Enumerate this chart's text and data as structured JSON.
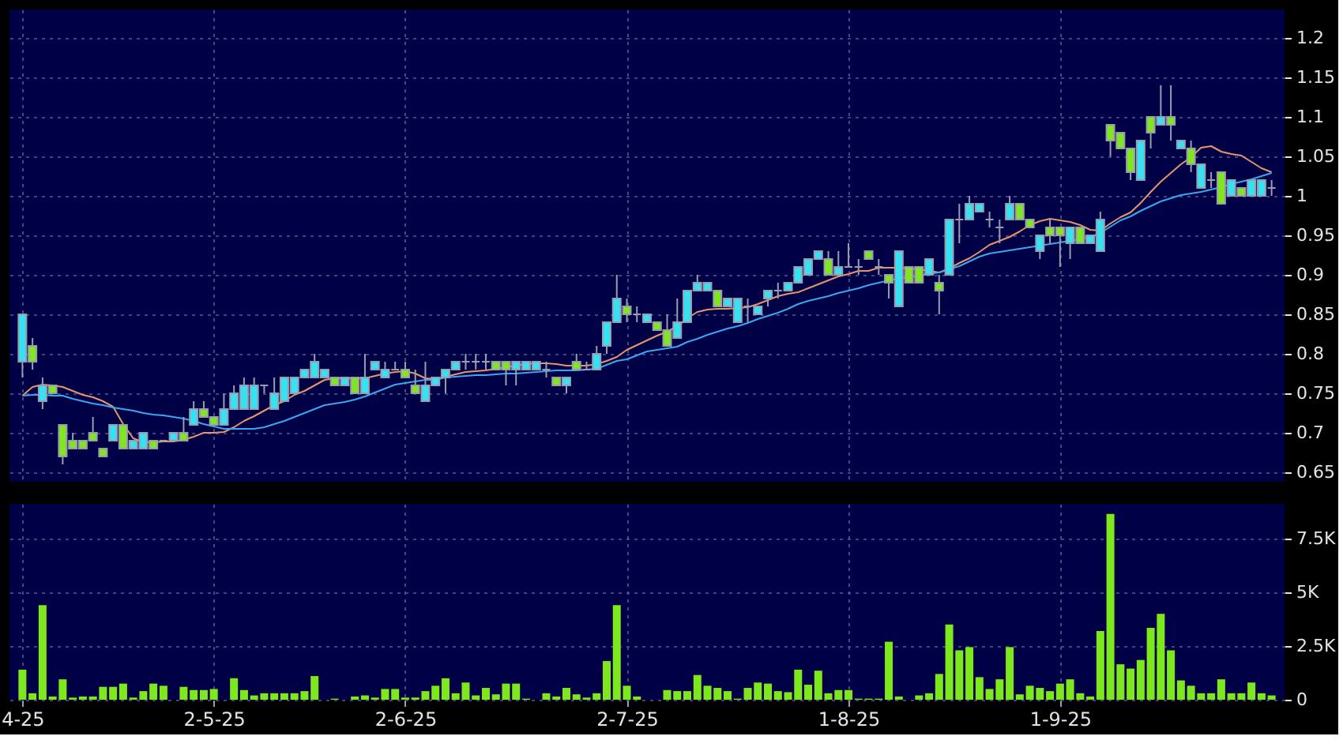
{
  "chart_data": [
    {
      "type": "candlestick",
      "categories": [
        null,
        null,
        null,
        null,
        null,
        null,
        null,
        null,
        null,
        null,
        null,
        null,
        null,
        null,
        null,
        null,
        null,
        null,
        null,
        null,
        null,
        null,
        null,
        null,
        null,
        null,
        null,
        null,
        null,
        null,
        null,
        null,
        null,
        null,
        null,
        null,
        null,
        null,
        null,
        null,
        null,
        null,
        null,
        null,
        null,
        null,
        null,
        null,
        null,
        null,
        null,
        null,
        null,
        null,
        null,
        null,
        null,
        null,
        null,
        null,
        null,
        null,
        null,
        null,
        null,
        null,
        null,
        null,
        null,
        null,
        null,
        null,
        null,
        null,
        null,
        null,
        null,
        null,
        null,
        null,
        null,
        null,
        null,
        null,
        null,
        null,
        null,
        null,
        null,
        null,
        null,
        null,
        null,
        null,
        null,
        null,
        null,
        null,
        null,
        null,
        null,
        null,
        null,
        null,
        null,
        null,
        null,
        null,
        null,
        null,
        null,
        null,
        null,
        null,
        null,
        null,
        null,
        null,
        null,
        null,
        null,
        null,
        null,
        null,
        null
      ],
      "ohlc": [
        [
          0.79,
          0.85,
          0.77,
          0.85
        ],
        [
          0.81,
          0.82,
          0.78,
          0.79
        ],
        [
          0.74,
          0.77,
          0.73,
          0.76
        ],
        [
          0.76,
          0.76,
          0.75,
          0.75
        ],
        [
          0.71,
          0.71,
          0.66,
          0.67
        ],
        [
          0.69,
          0.7,
          0.68,
          0.68
        ],
        [
          0.69,
          0.69,
          0.68,
          0.68
        ],
        [
          0.7,
          0.72,
          0.69,
          0.69
        ],
        [
          0.68,
          0.68,
          0.67,
          0.67
        ],
        [
          0.69,
          0.71,
          0.69,
          0.71
        ],
        [
          0.71,
          0.71,
          0.68,
          0.68
        ],
        [
          0.68,
          0.69,
          0.68,
          0.69
        ],
        [
          0.68,
          0.7,
          0.68,
          0.7
        ],
        [
          0.69,
          0.69,
          0.68,
          0.68
        ],
        [
          0.69,
          0.69,
          0.69,
          0.69
        ],
        [
          0.69,
          0.7,
          0.69,
          0.7
        ],
        [
          0.7,
          0.72,
          0.69,
          0.69
        ],
        [
          0.71,
          0.74,
          0.71,
          0.73
        ],
        [
          0.73,
          0.74,
          0.72,
          0.72
        ],
        [
          0.72,
          0.72,
          0.71,
          0.71
        ],
        [
          0.71,
          0.75,
          0.71,
          0.73
        ],
        [
          0.73,
          0.76,
          0.73,
          0.75
        ],
        [
          0.73,
          0.77,
          0.73,
          0.76
        ],
        [
          0.73,
          0.77,
          0.73,
          0.76
        ],
        [
          0.76,
          0.76,
          0.75,
          0.76
        ],
        [
          0.73,
          0.77,
          0.73,
          0.75
        ],
        [
          0.74,
          0.77,
          0.74,
          0.77
        ],
        [
          0.75,
          0.77,
          0.75,
          0.77
        ],
        [
          0.77,
          0.78,
          0.77,
          0.78
        ],
        [
          0.77,
          0.8,
          0.77,
          0.79
        ],
        [
          0.77,
          0.78,
          0.77,
          0.78
        ],
        [
          0.77,
          0.77,
          0.76,
          0.76
        ],
        [
          0.76,
          0.77,
          0.76,
          0.77
        ],
        [
          0.77,
          0.77,
          0.75,
          0.75
        ],
        [
          0.75,
          0.8,
          0.75,
          0.77
        ],
        [
          0.78,
          0.79,
          0.78,
          0.79
        ],
        [
          0.77,
          0.79,
          0.77,
          0.78
        ],
        [
          0.78,
          0.79,
          0.78,
          0.78
        ],
        [
          0.78,
          0.79,
          0.77,
          0.77
        ],
        [
          0.76,
          0.78,
          0.75,
          0.75
        ],
        [
          0.74,
          0.79,
          0.74,
          0.76
        ],
        [
          0.76,
          0.77,
          0.76,
          0.77
        ],
        [
          0.77,
          0.78,
          0.75,
          0.78
        ],
        [
          0.78,
          0.79,
          0.78,
          0.79
        ],
        [
          0.79,
          0.8,
          0.78,
          0.79
        ],
        [
          0.79,
          0.8,
          0.78,
          0.79
        ],
        [
          0.79,
          0.8,
          0.78,
          0.79
        ],
        [
          0.79,
          0.79,
          0.78,
          0.78
        ],
        [
          0.79,
          0.79,
          0.76,
          0.78
        ],
        [
          0.78,
          0.79,
          0.76,
          0.79
        ],
        [
          0.78,
          0.79,
          0.78,
          0.79
        ],
        [
          0.78,
          0.79,
          0.78,
          0.79
        ],
        [
          0.78,
          0.79,
          0.77,
          0.78
        ],
        [
          0.77,
          0.77,
          0.76,
          0.76
        ],
        [
          0.76,
          0.77,
          0.75,
          0.77
        ],
        [
          0.79,
          0.8,
          0.78,
          0.78
        ],
        [
          0.78,
          0.79,
          0.78,
          0.78
        ],
        [
          0.78,
          0.81,
          0.78,
          0.8
        ],
        [
          0.81,
          0.84,
          0.8,
          0.84
        ],
        [
          0.84,
          0.9,
          0.84,
          0.87
        ],
        [
          0.86,
          0.87,
          0.84,
          0.85
        ],
        [
          0.85,
          0.86,
          0.84,
          0.85
        ],
        [
          0.84,
          0.85,
          0.84,
          0.85
        ],
        [
          0.84,
          0.84,
          0.83,
          0.83
        ],
        [
          0.83,
          0.85,
          0.81,
          0.81
        ],
        [
          0.82,
          0.87,
          0.82,
          0.84
        ],
        [
          0.84,
          0.88,
          0.84,
          0.88
        ],
        [
          0.88,
          0.9,
          0.88,
          0.89
        ],
        [
          0.88,
          0.89,
          0.88,
          0.89
        ],
        [
          0.88,
          0.88,
          0.86,
          0.86
        ],
        [
          0.86,
          0.87,
          0.86,
          0.87
        ],
        [
          0.84,
          0.87,
          0.84,
          0.87
        ],
        [
          0.86,
          0.87,
          0.84,
          0.86
        ],
        [
          0.85,
          0.86,
          0.85,
          0.86
        ],
        [
          0.87,
          0.88,
          0.86,
          0.88
        ],
        [
          0.88,
          0.89,
          0.87,
          0.88
        ],
        [
          0.88,
          0.89,
          0.88,
          0.89
        ],
        [
          0.89,
          0.91,
          0.89,
          0.91
        ],
        [
          0.9,
          0.92,
          0.9,
          0.92
        ],
        [
          0.92,
          0.93,
          0.92,
          0.93
        ],
        [
          0.92,
          0.93,
          0.9,
          0.9
        ],
        [
          0.9,
          0.93,
          0.9,
          0.91
        ],
        [
          0.91,
          0.94,
          0.91,
          0.91
        ],
        [
          0.91,
          0.92,
          0.9,
          0.91
        ],
        [
          0.93,
          0.93,
          0.92,
          0.92
        ],
        [
          0.91,
          0.92,
          0.9,
          0.91
        ],
        [
          0.9,
          0.9,
          0.87,
          0.89
        ],
        [
          0.86,
          0.93,
          0.86,
          0.93
        ],
        [
          0.91,
          0.91,
          0.89,
          0.89
        ],
        [
          0.91,
          0.91,
          0.89,
          0.89
        ],
        [
          0.9,
          0.92,
          0.9,
          0.92
        ],
        [
          0.89,
          0.9,
          0.85,
          0.88
        ],
        [
          0.9,
          0.97,
          0.9,
          0.97
        ],
        [
          0.97,
          0.99,
          0.94,
          0.97
        ],
        [
          0.97,
          1,
          0.97,
          0.99
        ],
        [
          0.98,
          0.99,
          0.98,
          0.99
        ],
        [
          0.97,
          0.98,
          0.96,
          0.97
        ],
        [
          0.96,
          0.97,
          0.94,
          0.96
        ],
        [
          0.97,
          1,
          0.97,
          0.99
        ],
        [
          0.99,
          0.99,
          0.97,
          0.97
        ],
        [
          0.97,
          0.97,
          0.96,
          0.96
        ],
        [
          0.93,
          0.95,
          0.92,
          0.95
        ],
        [
          0.96,
          0.97,
          0.94,
          0.95
        ],
        [
          0.96,
          0.96,
          0.91,
          0.95
        ],
        [
          0.94,
          0.96,
          0.92,
          0.96
        ],
        [
          0.96,
          0.96,
          0.94,
          0.94
        ],
        [
          0.94,
          0.95,
          0.94,
          0.95
        ],
        [
          0.93,
          0.98,
          0.93,
          0.97
        ],
        [
          1.09,
          1.09,
          1.05,
          1.07
        ],
        [
          1.08,
          1.08,
          1.06,
          1.06
        ],
        [
          1.06,
          1.06,
          1.02,
          1.03
        ],
        [
          1.02,
          1.07,
          1.02,
          1.07
        ],
        [
          1.1,
          1.1,
          1.06,
          1.08
        ],
        [
          1.09,
          1.14,
          1.09,
          1.1
        ],
        [
          1.1,
          1.14,
          1.07,
          1.09
        ],
        [
          1.06,
          1.07,
          1.06,
          1.07
        ],
        [
          1.06,
          1.07,
          1.03,
          1.04
        ],
        [
          1.01,
          1.04,
          1.01,
          1.04
        ],
        [
          1.02,
          1.03,
          1.01,
          1.02
        ],
        [
          1.03,
          1.03,
          0.99,
          0.99
        ],
        [
          1,
          1.02,
          1,
          1.02
        ],
        [
          1.01,
          1.01,
          1,
          1
        ],
        [
          1,
          1.02,
          1,
          1.02
        ],
        [
          1,
          1.02,
          1,
          1.02
        ],
        [
          1.01,
          1.02,
          1,
          1.01
        ]
      ],
      "colors": [
        "#36e2f2",
        "#80e620",
        "#36e2f2",
        "#80e620",
        "#80e620",
        "#80e620",
        "#80e620",
        "#80e620",
        "#80e620",
        "#36e2f2",
        "#80e620",
        "#36e2f2",
        "#36e2f2",
        "#80e620",
        "#a0a0b0",
        "#36e2f2",
        "#80e620",
        "#36e2f2",
        "#80e620",
        "#80e620",
        "#36e2f2",
        "#36e2f2",
        "#36e2f2",
        "#36e2f2",
        "#a0a0b0",
        "#36e2f2",
        "#36e2f2",
        "#36e2f2",
        "#36e2f2",
        "#36e2f2",
        "#36e2f2",
        "#80e620",
        "#36e2f2",
        "#80e620",
        "#36e2f2",
        "#36e2f2",
        "#36e2f2",
        "#a0a0b0",
        "#80e620",
        "#80e620",
        "#36e2f2",
        "#36e2f2",
        "#36e2f2",
        "#36e2f2",
        "#a0a0b0",
        "#a0a0b0",
        "#a0a0b0",
        "#80e620",
        "#80e620",
        "#36e2f2",
        "#36e2f2",
        "#36e2f2",
        "#a0a0b0",
        "#80e620",
        "#36e2f2",
        "#80e620",
        "#a0a0b0",
        "#36e2f2",
        "#36e2f2",
        "#36e2f2",
        "#80e620",
        "#a0a0b0",
        "#36e2f2",
        "#80e620",
        "#80e620",
        "#36e2f2",
        "#36e2f2",
        "#36e2f2",
        "#36e2f2",
        "#80e620",
        "#36e2f2",
        "#36e2f2",
        "#a0a0b0",
        "#36e2f2",
        "#36e2f2",
        "#a0a0b0",
        "#36e2f2",
        "#36e2f2",
        "#36e2f2",
        "#36e2f2",
        "#80e620",
        "#36e2f2",
        "#a0a0b0",
        "#a0a0b0",
        "#80e620",
        "#a0a0b0",
        "#80e620",
        "#36e2f2",
        "#80e620",
        "#80e620",
        "#36e2f2",
        "#80e620",
        "#36e2f2",
        "#a0a0b0",
        "#36e2f2",
        "#36e2f2",
        "#a0a0b0",
        "#a0a0b0",
        "#36e2f2",
        "#80e620",
        "#80e620",
        "#36e2f2",
        "#80e620",
        "#80e620",
        "#36e2f2",
        "#80e620",
        "#36e2f2",
        "#36e2f2",
        "#80e620",
        "#80e620",
        "#80e620",
        "#36e2f2",
        "#80e620",
        "#36e2f2",
        "#80e620",
        "#36e2f2",
        "#80e620",
        "#36e2f2",
        "#a0a0b0",
        "#80e620",
        "#36e2f2",
        "#80e620",
        "#36e2f2",
        "#36e2f2",
        "#a0a0b0"
      ],
      "series": [
        {
          "type": "line",
          "color": "#e8946a",
          "values": [
            0.747,
            0.758,
            0.761,
            0.76,
            0.758,
            0.753,
            0.748,
            0.745,
            0.74,
            0.733,
            0.711,
            0.693,
            0.688,
            0.688,
            0.689,
            0.689,
            0.691,
            0.695,
            0.7,
            0.7,
            0.701,
            0.707,
            0.715,
            0.721,
            0.728,
            0.735,
            0.74,
            0.748,
            0.753,
            0.76,
            0.767,
            0.769,
            0.769,
            0.769,
            0.769,
            0.772,
            0.775,
            0.777,
            0.778,
            0.775,
            0.769,
            0.768,
            0.771,
            0.774,
            0.777,
            0.778,
            0.779,
            0.781,
            0.783,
            0.785,
            0.787,
            0.788,
            0.788,
            0.787,
            0.785,
            0.785,
            0.785,
            0.787,
            0.791,
            0.796,
            0.805,
            0.811,
            0.817,
            0.823,
            0.828,
            0.835,
            0.845,
            0.853,
            0.856,
            0.857,
            0.857,
            0.858,
            0.859,
            0.863,
            0.868,
            0.873,
            0.876,
            0.878,
            0.883,
            0.888,
            0.893,
            0.898,
            0.901,
            0.905,
            0.905,
            0.909,
            0.909,
            0.909,
            0.908,
            0.907,
            0.905,
            0.903,
            0.908,
            0.915,
            0.921,
            0.929,
            0.938,
            0.943,
            0.948,
            0.955,
            0.963,
            0.968,
            0.971,
            0.969,
            0.967,
            0.963,
            0.957,
            0.956,
            0.965,
            0.973,
            0.979,
            0.991,
            1.005,
            1.018,
            1.029,
            1.04,
            1.049,
            1.061,
            1.063,
            1.056,
            1.053,
            1.051,
            1.043,
            1.035,
            1.03
          ]
        },
        {
          "type": "line",
          "color": "#3aa6f0",
          "values": [
            0.747,
            0.748,
            0.748,
            0.747,
            0.747,
            0.743,
            0.74,
            0.737,
            0.735,
            0.732,
            0.73,
            0.728,
            0.725,
            0.723,
            0.722,
            0.72,
            0.718,
            0.715,
            0.711,
            0.708,
            0.705,
            0.705,
            0.705,
            0.705,
            0.707,
            0.711,
            0.715,
            0.72,
            0.725,
            0.73,
            0.735,
            0.737,
            0.739,
            0.742,
            0.746,
            0.751,
            0.756,
            0.761,
            0.763,
            0.765,
            0.767,
            0.767,
            0.77,
            0.771,
            0.772,
            0.773,
            0.773,
            0.774,
            0.775,
            0.775,
            0.776,
            0.777,
            0.778,
            0.779,
            0.779,
            0.779,
            0.78,
            0.781,
            0.786,
            0.791,
            0.793,
            0.798,
            0.803,
            0.805,
            0.807,
            0.809,
            0.815,
            0.819,
            0.824,
            0.828,
            0.832,
            0.835,
            0.839,
            0.844,
            0.848,
            0.852,
            0.857,
            0.863,
            0.867,
            0.87,
            0.873,
            0.877,
            0.88,
            0.883,
            0.887,
            0.89,
            0.893,
            0.895,
            0.897,
            0.899,
            0.901,
            0.903,
            0.907,
            0.911,
            0.917,
            0.923,
            0.927,
            0.929,
            0.931,
            0.933,
            0.935,
            0.937,
            0.939,
            0.941,
            0.943,
            0.945,
            0.948,
            0.953,
            0.961,
            0.969,
            0.974,
            0.981,
            0.987,
            0.993,
            0.997,
            1.001,
            1.003,
            1.005,
            1.008,
            1.011,
            1.015,
            1.018,
            1.021,
            1.025,
            1.029
          ]
        }
      ],
      "ylim": [
        0.638,
        1.236
      ],
      "yticks": [
        0.65,
        0.7,
        0.75,
        0.8,
        0.85,
        0.9,
        0.95,
        1,
        1.05,
        1.1,
        1.15,
        1.2
      ],
      "grid": true,
      "tick_labels": "y"
    },
    {
      "type": "bar",
      "categories": [
        "4-25",
        null,
        null,
        null,
        null,
        null,
        null,
        null,
        null,
        null,
        null,
        null,
        null,
        null,
        null,
        null,
        null,
        null,
        null,
        "2-5-25",
        null,
        null,
        null,
        null,
        null,
        null,
        null,
        null,
        null,
        null,
        null,
        null,
        null,
        null,
        null,
        null,
        null,
        null,
        "2-6-25",
        null,
        null,
        null,
        null,
        null,
        null,
        null,
        null,
        null,
        null,
        null,
        null,
        null,
        null,
        null,
        null,
        null,
        null,
        null,
        null,
        null,
        "2-7-25",
        null,
        null,
        null,
        null,
        null,
        null,
        null,
        null,
        null,
        null,
        null,
        null,
        null,
        null,
        null,
        null,
        null,
        null,
        null,
        null,
        null,
        "1-8-25",
        null,
        null,
        null,
        null,
        null,
        null,
        null,
        null,
        null,
        null,
        null,
        null,
        null,
        null,
        null,
        null,
        null,
        null,
        null,
        null,
        "1-9-25",
        null,
        null,
        null,
        null,
        null,
        null,
        null,
        null,
        null,
        null,
        null,
        null,
        null,
        null,
        null,
        null,
        null,
        null,
        null,
        null,
        null
      ],
      "values": [
        1400,
        300,
        4400,
        150,
        950,
        100,
        150,
        150,
        600,
        600,
        750,
        100,
        400,
        750,
        650,
        0,
        600,
        450,
        450,
        500,
        0,
        1000,
        450,
        200,
        300,
        300,
        300,
        300,
        400,
        1100,
        0,
        50,
        0,
        150,
        200,
        100,
        500,
        500,
        100,
        100,
        400,
        650,
        1000,
        300,
        800,
        200,
        550,
        250,
        750,
        750,
        50,
        0,
        300,
        150,
        550,
        250,
        100,
        300,
        1800,
        4400,
        650,
        150,
        0,
        0,
        450,
        400,
        400,
        1150,
        650,
        550,
        400,
        50,
        550,
        800,
        750,
        400,
        350,
        1400,
        700,
        1350,
        300,
        450,
        450,
        50,
        50,
        50,
        2700,
        150,
        0,
        200,
        300,
        1200,
        3500,
        2300,
        2450,
        1050,
        500,
        950,
        2450,
        250,
        650,
        550,
        400,
        750,
        950,
        300,
        150,
        3200,
        8650,
        1650,
        1450,
        1850,
        3350,
        4000,
        2300,
        900,
        650,
        300,
        300,
        950,
        300,
        300,
        800,
        300,
        200
      ],
      "color": "#7ee81f",
      "ylim": [
        0,
        9120
      ],
      "yticks": [
        0,
        {
          "value": 2500,
          "label": "2.5K"
        },
        {
          "value": 5000,
          "label": "5K"
        },
        {
          "value": 7500,
          "label": "7.5K"
        }
      ],
      "grid": true
    }
  ]
}
